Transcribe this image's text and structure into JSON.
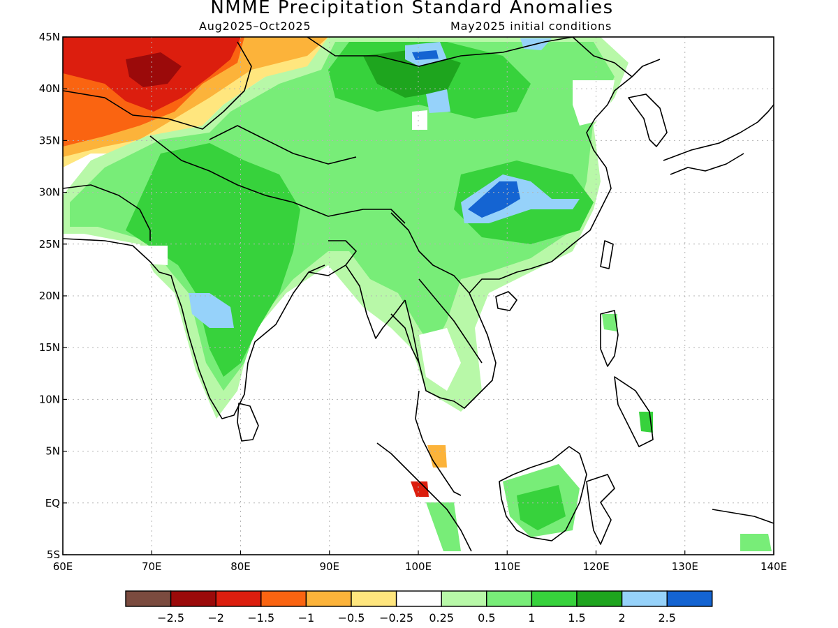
{
  "title": "NMME Precipitation Standard Anomalies",
  "period": "Aug2025–Oct2025",
  "initial_conditions": "May2025 initial conditions",
  "map": {
    "lon_range": [
      60,
      140
    ],
    "lat_range": [
      -5,
      45
    ],
    "lon_ticks": [
      "60E",
      "70E",
      "80E",
      "90E",
      "100E",
      "110E",
      "120E",
      "130E",
      "140E"
    ],
    "lat_ticks": [
      "45N",
      "40N",
      "35N",
      "30N",
      "25N",
      "20N",
      "15N",
      "10N",
      "5N",
      "EQ",
      "5S"
    ],
    "grid": true
  },
  "colorbar": {
    "colors": [
      "#7b4b3f",
      "#9b0a0a",
      "#dc1e0e",
      "#fa6411",
      "#fcb33a",
      "#ffe67e",
      "#ffffff",
      "#b8f8a8",
      "#78ed78",
      "#37d23c",
      "#1ea51e",
      "#96d2fa",
      "#1464d2"
    ],
    "labels": [
      "−2.5",
      "−2",
      "−1.5",
      "−1",
      "−0.5",
      "−0.25",
      "0.25",
      "0.5",
      "1",
      "1.5",
      "2",
      "2.5"
    ]
  }
}
